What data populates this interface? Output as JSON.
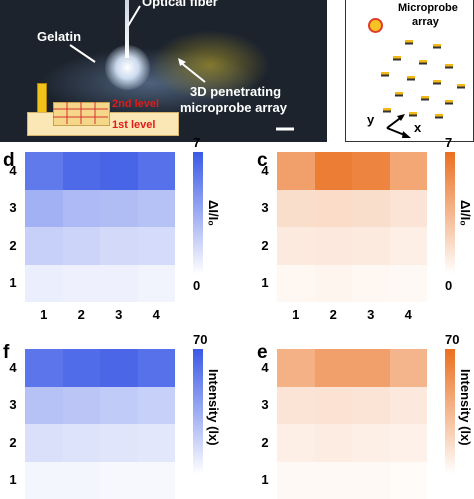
{
  "photo": {
    "labels": {
      "optical_fiber": "Optical fiber",
      "gelatin": "Gelatin",
      "array_line1": "3D penetrating",
      "array_line2": "microprobe array",
      "level2": "2nd level",
      "level1": "1st level"
    }
  },
  "schematic": {
    "microprobe_line1": "Microprobe",
    "microprobe_line2": "array",
    "axis_y": "y",
    "axis_x": "x"
  },
  "chart_data": [
    {
      "panel": "d",
      "type": "heatmap",
      "x_ticks": [
        "1",
        "2",
        "3",
        "4"
      ],
      "y_ticks": [
        "4",
        "3",
        "2",
        "1"
      ],
      "colorbar_label": "ΔI/I₀",
      "colorbar_max": "7",
      "colorbar_min": "0",
      "colormap": [
        "#ffffff",
        "#3a59e6"
      ],
      "range": [
        0,
        7
      ],
      "values": [
        [
          5.6,
          6.3,
          6.5,
          6.0
        ],
        [
          3.3,
          2.9,
          2.8,
          2.6
        ],
        [
          2.0,
          1.8,
          1.6,
          1.5
        ],
        [
          0.7,
          0.6,
          0.6,
          0.5
        ]
      ]
    },
    {
      "panel": "c",
      "type": "heatmap",
      "x_ticks": [
        "1",
        "2",
        "3",
        "4"
      ],
      "y_ticks": [
        "4",
        "3",
        "2",
        "1"
      ],
      "colorbar_label": "ΔI/I₀",
      "colorbar_max": "7",
      "colorbar_min": "0",
      "colormap": [
        "#ffffff",
        "#ea6f1f"
      ],
      "range": [
        0,
        7
      ],
      "values": [
        [
          4.6,
          6.3,
          6.0,
          4.3
        ],
        [
          1.6,
          1.7,
          1.6,
          1.3
        ],
        [
          1.0,
          1.1,
          1.0,
          0.8
        ],
        [
          0.4,
          0.5,
          0.4,
          0.3
        ]
      ]
    },
    {
      "panel": "f",
      "type": "heatmap",
      "x_ticks": [
        "1",
        "2",
        "3",
        "4"
      ],
      "y_ticks": [
        "4",
        "3",
        "2",
        "1"
      ],
      "colorbar_label": "Intensity (lx)",
      "colorbar_max": "70",
      "colormap": [
        "#ffffff",
        "#3a59e6"
      ],
      "range": [
        0,
        70
      ],
      "values": [
        [
          58,
          62,
          64,
          60
        ],
        [
          26,
          24,
          22,
          20
        ],
        [
          13,
          12,
          11,
          10
        ],
        [
          4,
          4,
          3,
          3
        ]
      ]
    },
    {
      "panel": "e",
      "type": "heatmap",
      "x_ticks": [
        "1",
        "2",
        "3",
        "4"
      ],
      "y_ticks": [
        "4",
        "3",
        "2",
        "1"
      ],
      "colorbar_label": "Intensity (lx)",
      "colorbar_max": "70",
      "colormap": [
        "#ffffff",
        "#ea6f1f"
      ],
      "range": [
        0,
        70
      ],
      "values": [
        [
          38,
          46,
          46,
          36
        ],
        [
          13,
          14,
          13,
          11
        ],
        [
          8,
          9,
          8,
          7
        ],
        [
          3,
          3,
          3,
          2
        ]
      ]
    }
  ]
}
